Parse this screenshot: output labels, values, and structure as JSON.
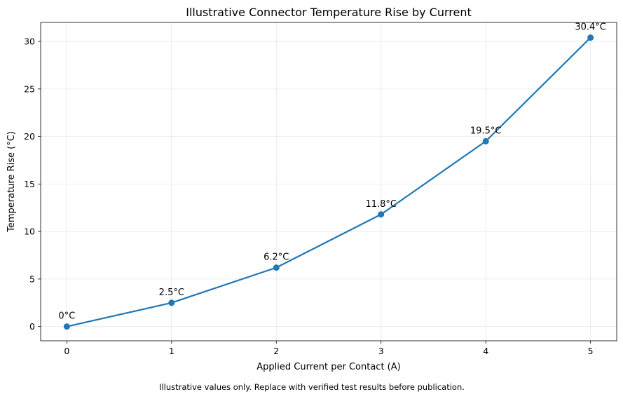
{
  "chart_data": {
    "type": "line",
    "title": "Illustrative Connector Temperature Rise by Current",
    "xlabel": "Applied Current per Contact (A)",
    "ylabel": "Temperature Rise (°C)",
    "xlim": [
      -0.25,
      5.25
    ],
    "ylim": [
      -1.5,
      32
    ],
    "xticks": [
      0,
      1,
      2,
      3,
      4,
      5
    ],
    "yticks": [
      0,
      5,
      10,
      15,
      20,
      25,
      30
    ],
    "grid": true,
    "x": [
      0,
      1,
      2,
      3,
      4,
      5
    ],
    "series": [
      {
        "values": [
          0,
          2.5,
          6.2,
          11.8,
          19.5,
          30.4
        ],
        "color": "#1f77b4",
        "marker": "circle"
      }
    ],
    "data_labels": [
      "0°C",
      "2.5°C",
      "6.2°C",
      "11.8°C",
      "19.5°C",
      "30.4°C"
    ],
    "footnote": "Illustrative values only. Replace with verified test results before publication."
  }
}
